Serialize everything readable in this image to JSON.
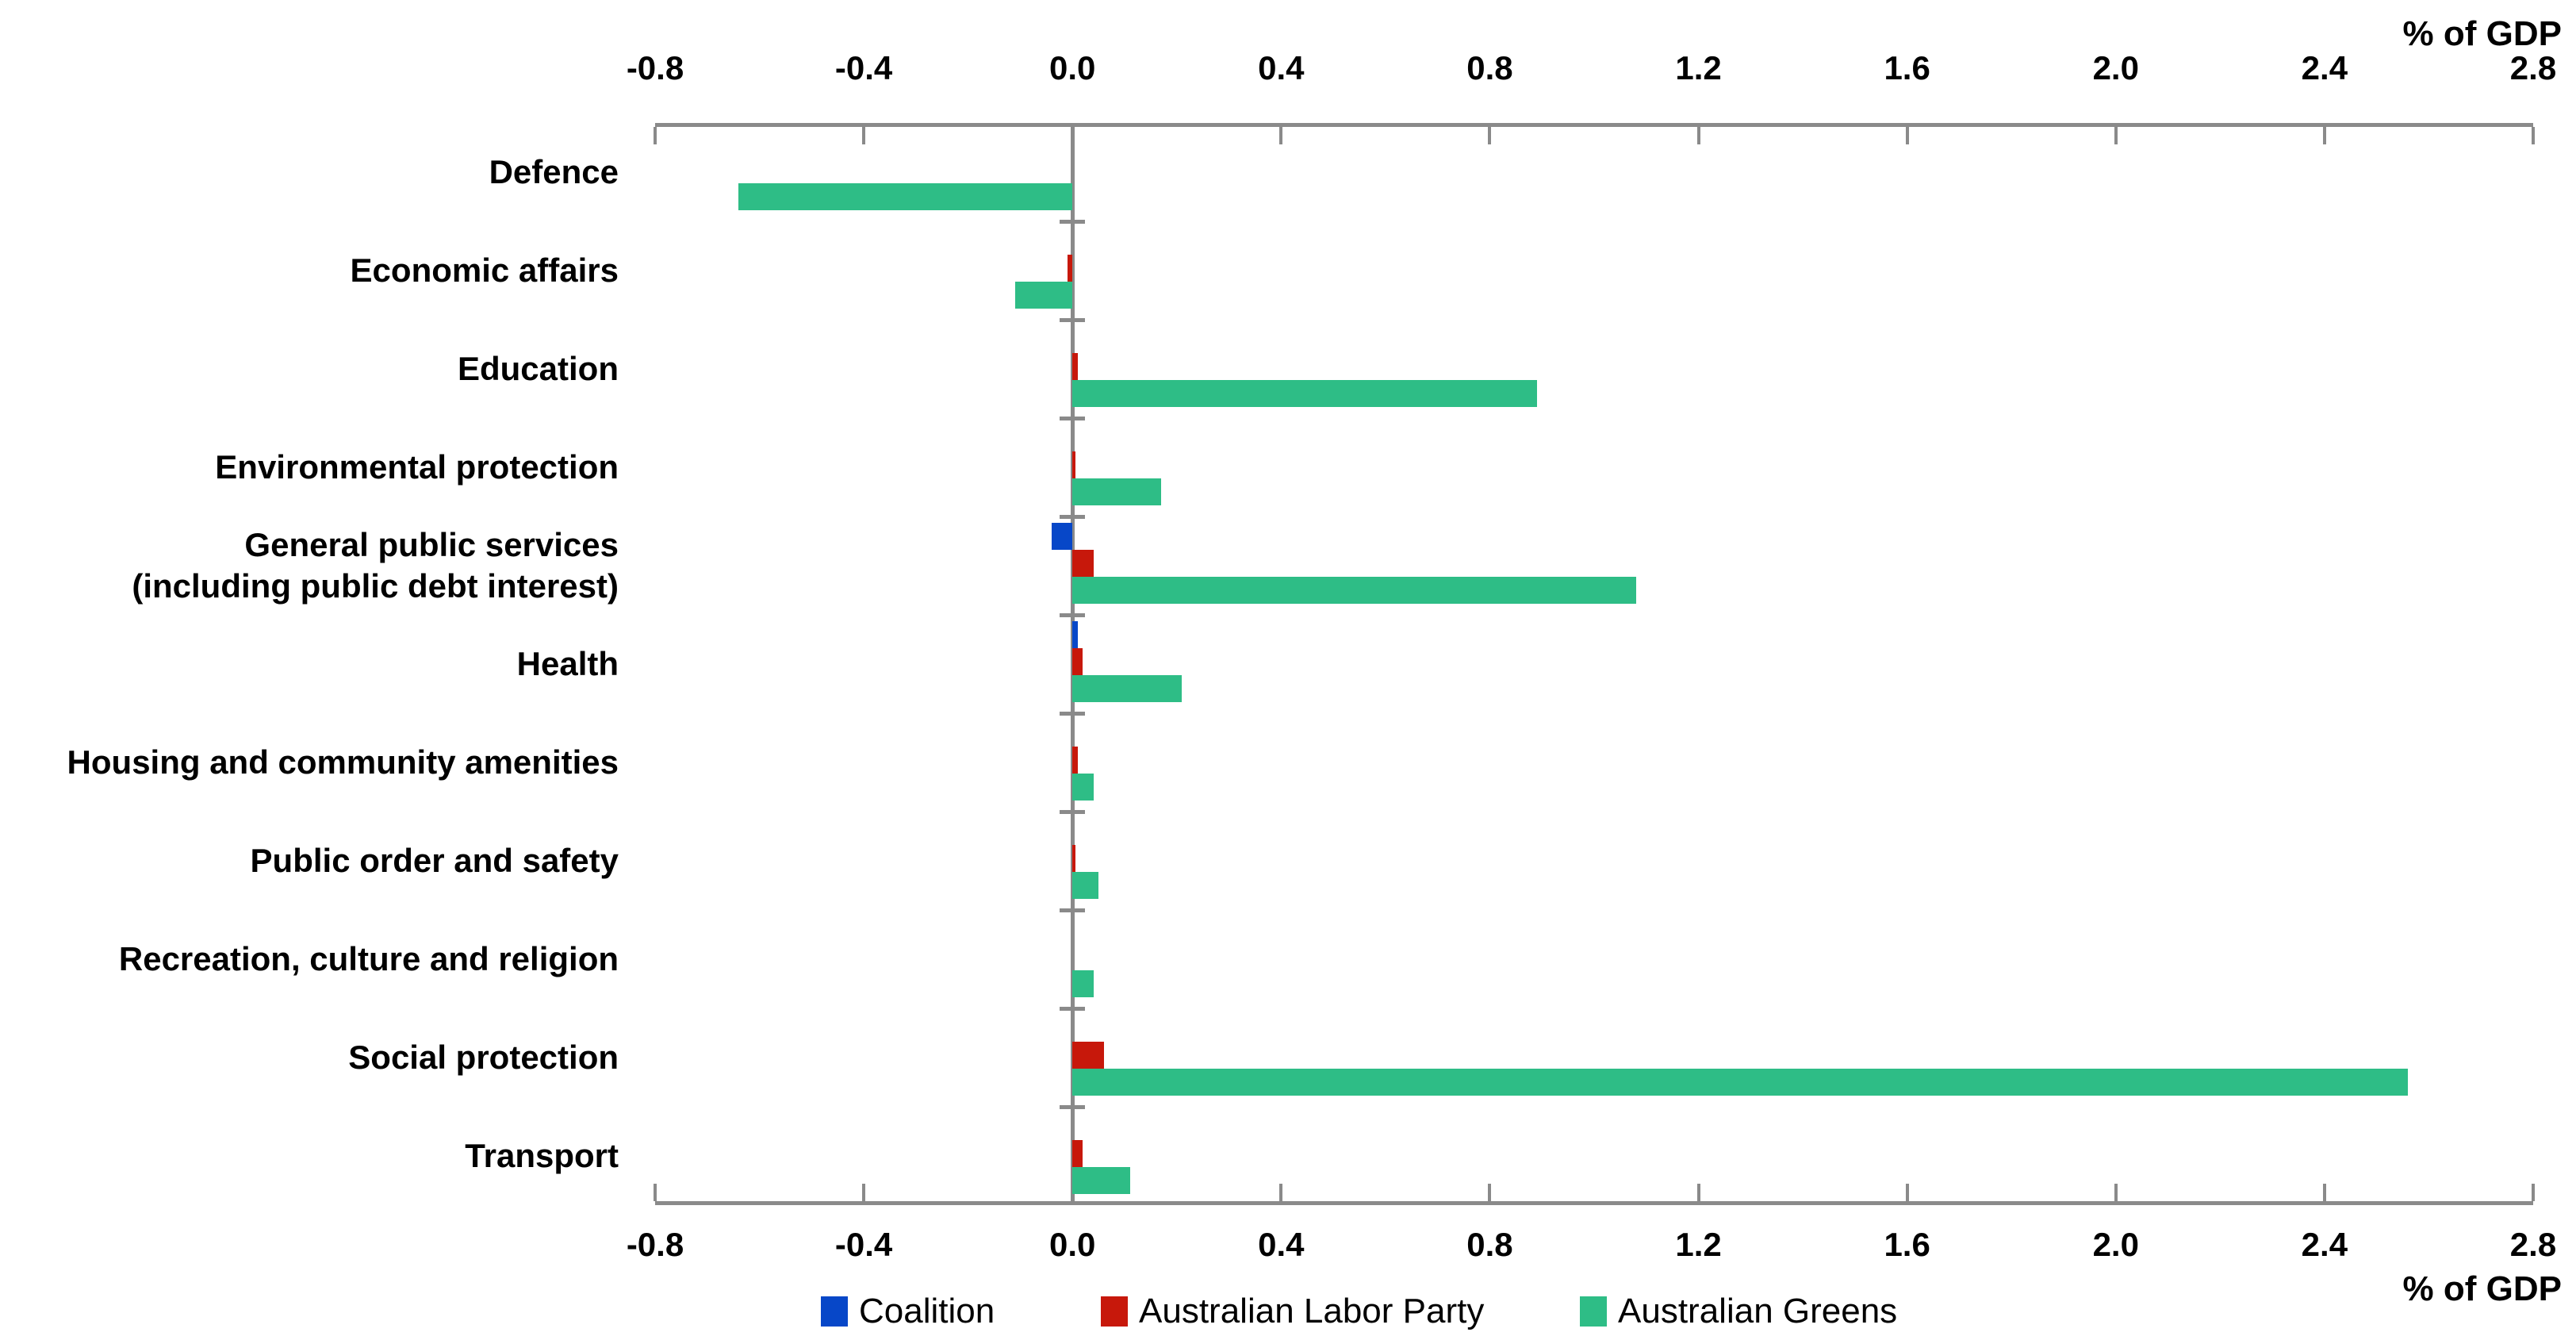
{
  "chart": {
    "top_axis_label": "% of GDP",
    "bottom_axis_label": "% of GDP",
    "x_tick_labels": [
      "-0.8",
      "-0.4",
      "0.0",
      "0.4",
      "0.8",
      "1.2",
      "1.6",
      "2.0",
      "2.4",
      "2.8"
    ]
  },
  "chart_data": {
    "type": "bar",
    "orientation": "horizontal",
    "title": "",
    "xlabel": "% of GDP",
    "ylabel": "",
    "xlim": [
      -0.8,
      2.8
    ],
    "tick_step": 0.4,
    "grid": false,
    "legend_position": "bottom",
    "categories": [
      "Defence",
      "Economic affairs",
      "Education",
      "Environmental protection",
      "General public services\n(including public debt interest)",
      "Health",
      "Housing and community amenities",
      "Public order and safety",
      "Recreation, culture and religion",
      "Social protection",
      "Transport"
    ],
    "series": [
      {
        "name": "Coalition",
        "color": "#0747c8",
        "values": [
          0,
          0,
          0,
          0,
          -0.04,
          0.01,
          0,
          0,
          0,
          0,
          0
        ]
      },
      {
        "name": "Australian Labor Party",
        "color": "#c7180b",
        "values": [
          0,
          -0.01,
          0.01,
          0.005,
          0.04,
          0.02,
          0.01,
          0.005,
          0,
          0.06,
          0.02
        ]
      },
      {
        "name": "Australian Greens",
        "color": "#2ebd86",
        "values": [
          -0.64,
          -0.11,
          0.89,
          0.17,
          1.08,
          0.21,
          0.04,
          0.05,
          0.04,
          2.56,
          0.11
        ]
      }
    ]
  },
  "legend": {
    "items": [
      "Coalition",
      "Australian Labor Party",
      "Australian Greens"
    ]
  }
}
